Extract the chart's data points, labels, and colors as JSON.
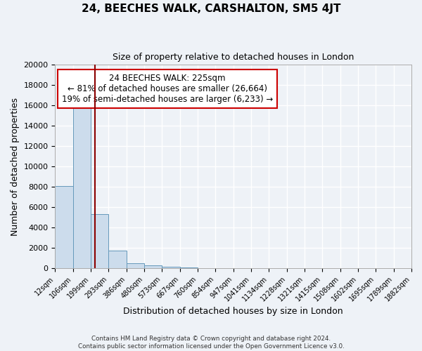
{
  "title": "24, BEECHES WALK, CARSHALTON, SM5 4JT",
  "subtitle": "Size of property relative to detached houses in London",
  "xlabel": "Distribution of detached houses by size in London",
  "ylabel": "Number of detached properties",
  "bar_color": "#ccdcec",
  "bar_edge_color": "#6699bb",
  "background_color": "#eef2f7",
  "grid_color": "#ffffff",
  "bin_labels": [
    "12sqm",
    "106sqm",
    "199sqm",
    "293sqm",
    "386sqm",
    "480sqm",
    "573sqm",
    "667sqm",
    "760sqm",
    "854sqm",
    "947sqm",
    "1041sqm",
    "1134sqm",
    "1228sqm",
    "1321sqm",
    "1415sqm",
    "1508sqm",
    "1602sqm",
    "1695sqm",
    "1789sqm",
    "1882sqm"
  ],
  "bar_heights": [
    8100,
    16600,
    5300,
    1750,
    500,
    280,
    150,
    130,
    0,
    0,
    0,
    0,
    0,
    0,
    0,
    0,
    0,
    0,
    0,
    0
  ],
  "ylim": [
    0,
    20000
  ],
  "yticks": [
    0,
    2000,
    4000,
    6000,
    8000,
    10000,
    12000,
    14000,
    16000,
    18000,
    20000
  ],
  "property_line_x": 2.24,
  "property_line_color": "#8b0000",
  "annotation_title": "24 BEECHES WALK: 225sqm",
  "annotation_line1": "← 81% of detached houses are smaller (26,664)",
  "annotation_line2": "19% of semi-detached houses are larger (6,233) →",
  "annotation_box_facecolor": "#ffffff",
  "annotation_box_edgecolor": "#cc0000",
  "footer_line1": "Contains HM Land Registry data © Crown copyright and database right 2024.",
  "footer_line2": "Contains public sector information licensed under the Open Government Licence v3.0."
}
